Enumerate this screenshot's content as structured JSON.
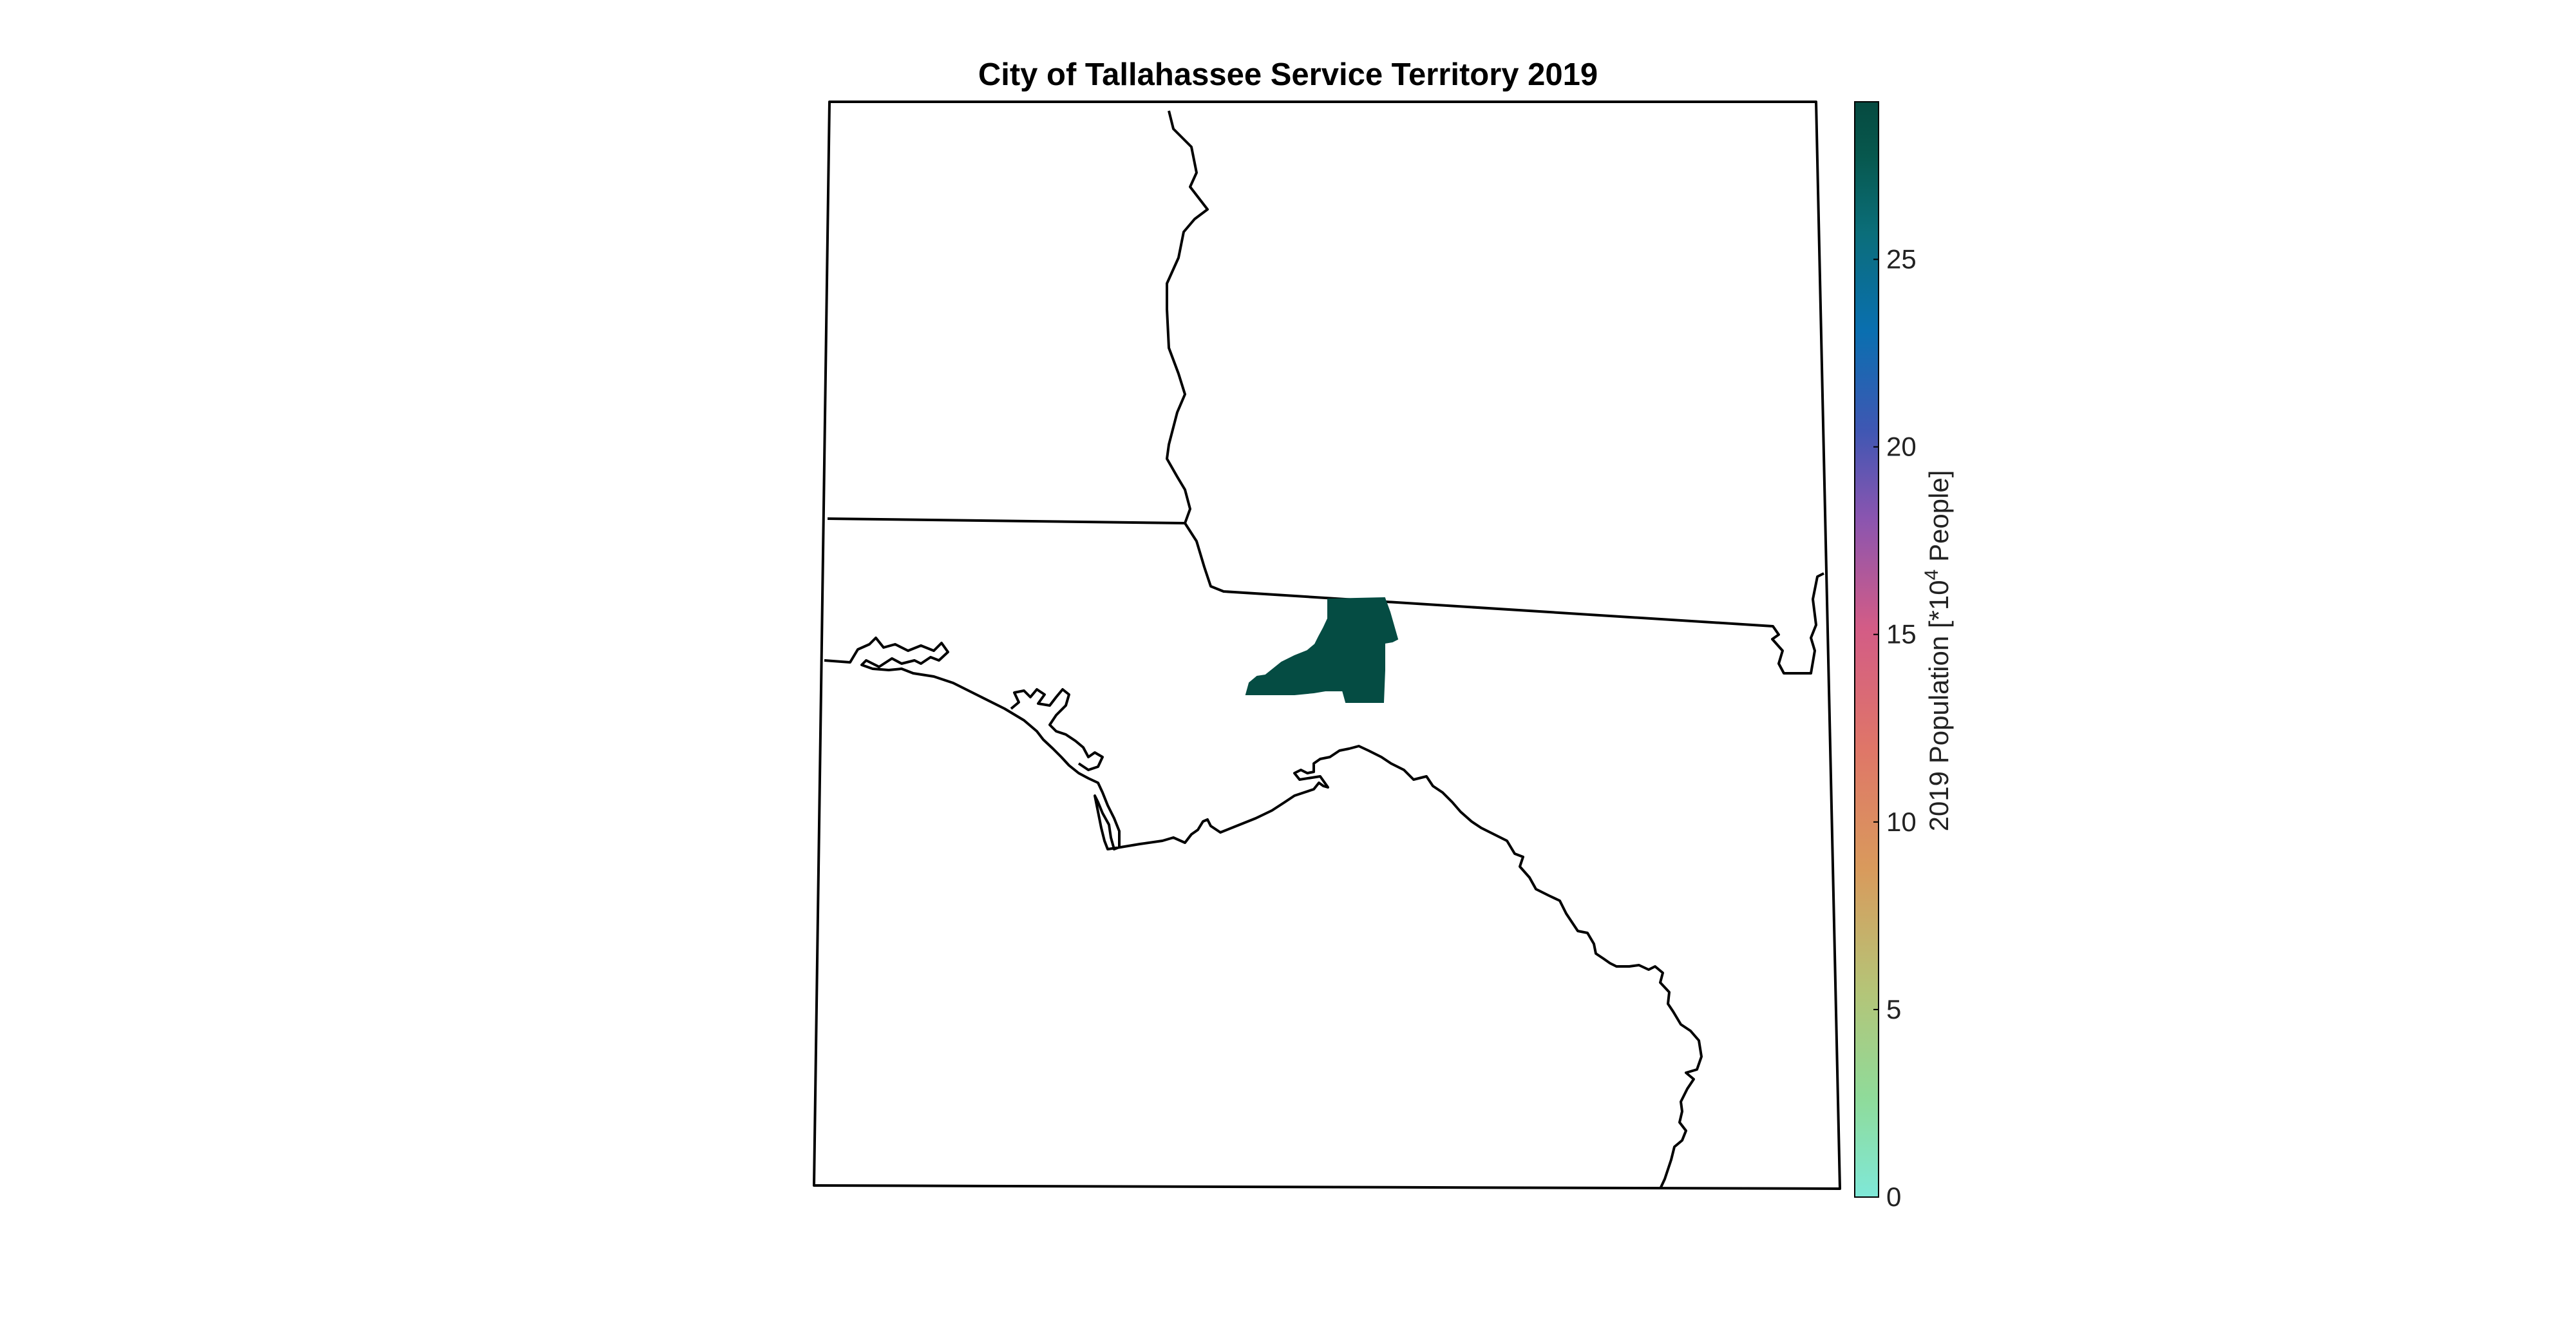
{
  "title": "City of Tallahassee Service Territory 2019",
  "colorbar": {
    "label_main": "2019 Population [*10",
    "label_exp": "4",
    "label_tail": " People]",
    "range": [
      0,
      29.2
    ],
    "ticks": [
      "0",
      "5",
      "10",
      "15",
      "20",
      "25"
    ],
    "colormap": [
      "#7fe8d8",
      "#8fdb9a",
      "#b5c477",
      "#d99a5c",
      "#df7668",
      "#d35c86",
      "#8a55b0",
      "#3f57b3",
      "#0a6fb0",
      "#0b6e7a",
      "#07584e",
      "#064a40"
    ]
  },
  "territory": {
    "name": "City of Tallahassee service territory",
    "value": 29.2,
    "fill": "#054c43"
  },
  "boundary_color": "#000000"
}
